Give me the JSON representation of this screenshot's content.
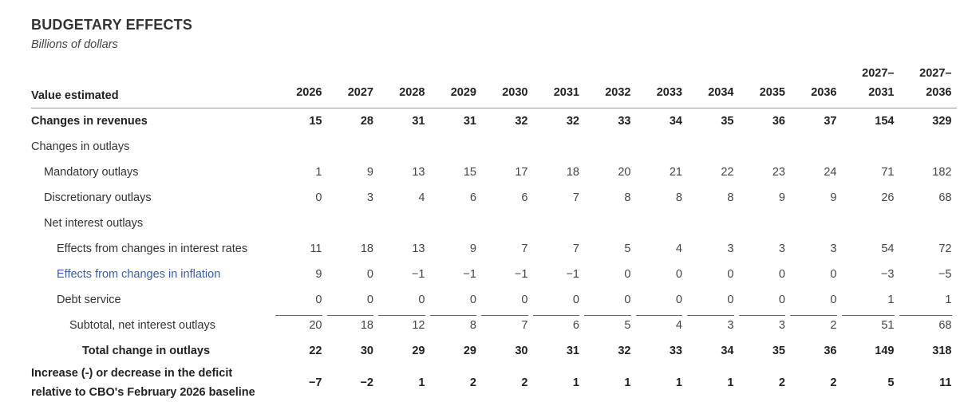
{
  "header": {
    "title": "BUDGETARY EFFECTS",
    "subtitle": "Billions of dollars"
  },
  "table": {
    "label_header": "Value estimated",
    "columns": [
      "2026",
      "2027",
      "2028",
      "2029",
      "2030",
      "2031",
      "2032",
      "2033",
      "2034",
      "2035",
      "2036"
    ],
    "range_cols": [
      {
        "top": "2027–",
        "bottom": "2031"
      },
      {
        "top": "2027–",
        "bottom": "2036"
      }
    ],
    "rows": [
      {
        "label": "Changes in revenues",
        "values": [
          "15",
          "28",
          "31",
          "31",
          "32",
          "32",
          "33",
          "34",
          "35",
          "36",
          "37",
          "154",
          "329"
        ]
      },
      {
        "label": "Changes in outlays",
        "values": []
      },
      {
        "label": "Mandatory outlays",
        "values": [
          "1",
          "9",
          "13",
          "15",
          "17",
          "18",
          "20",
          "21",
          "22",
          "23",
          "24",
          "71",
          "182"
        ]
      },
      {
        "label": "Discretionary outlays",
        "values": [
          "0",
          "3",
          "4",
          "6",
          "6",
          "7",
          "8",
          "8",
          "8",
          "9",
          "9",
          "26",
          "68"
        ]
      },
      {
        "label": "Net interest outlays",
        "values": []
      },
      {
        "label": "Effects from changes in interest rates",
        "values": [
          "11",
          "18",
          "13",
          "9",
          "7",
          "7",
          "5",
          "4",
          "3",
          "3",
          "3",
          "54",
          "72"
        ]
      },
      {
        "label": "Effects from changes in inflation",
        "values": [
          "9",
          "0",
          "−1",
          "−1",
          "−1",
          "−1",
          "0",
          "0",
          "0",
          "0",
          "0",
          "−3",
          "−5"
        ]
      },
      {
        "label": "Debt service",
        "values": [
          "0",
          "0",
          "0",
          "0",
          "0",
          "0",
          "0",
          "0",
          "0",
          "0",
          "0",
          "1",
          "1"
        ]
      },
      {
        "label": "Subtotal, net interest outlays",
        "values": [
          "20",
          "18",
          "12",
          "8",
          "7",
          "6",
          "5",
          "4",
          "3",
          "3",
          "2",
          "51",
          "68"
        ]
      },
      {
        "label": "Total change in outlays",
        "values": [
          "22",
          "30",
          "29",
          "29",
          "30",
          "31",
          "32",
          "33",
          "34",
          "35",
          "36",
          "149",
          "318"
        ]
      },
      {
        "label": "Increase (-) or decrease in the deficit relative to CBO's February 2026 baseline",
        "values": [
          "−7",
          "−2",
          "1",
          "2",
          "2",
          "1",
          "1",
          "1",
          "1",
          "2",
          "2",
          "5",
          "11"
        ]
      }
    ]
  }
}
